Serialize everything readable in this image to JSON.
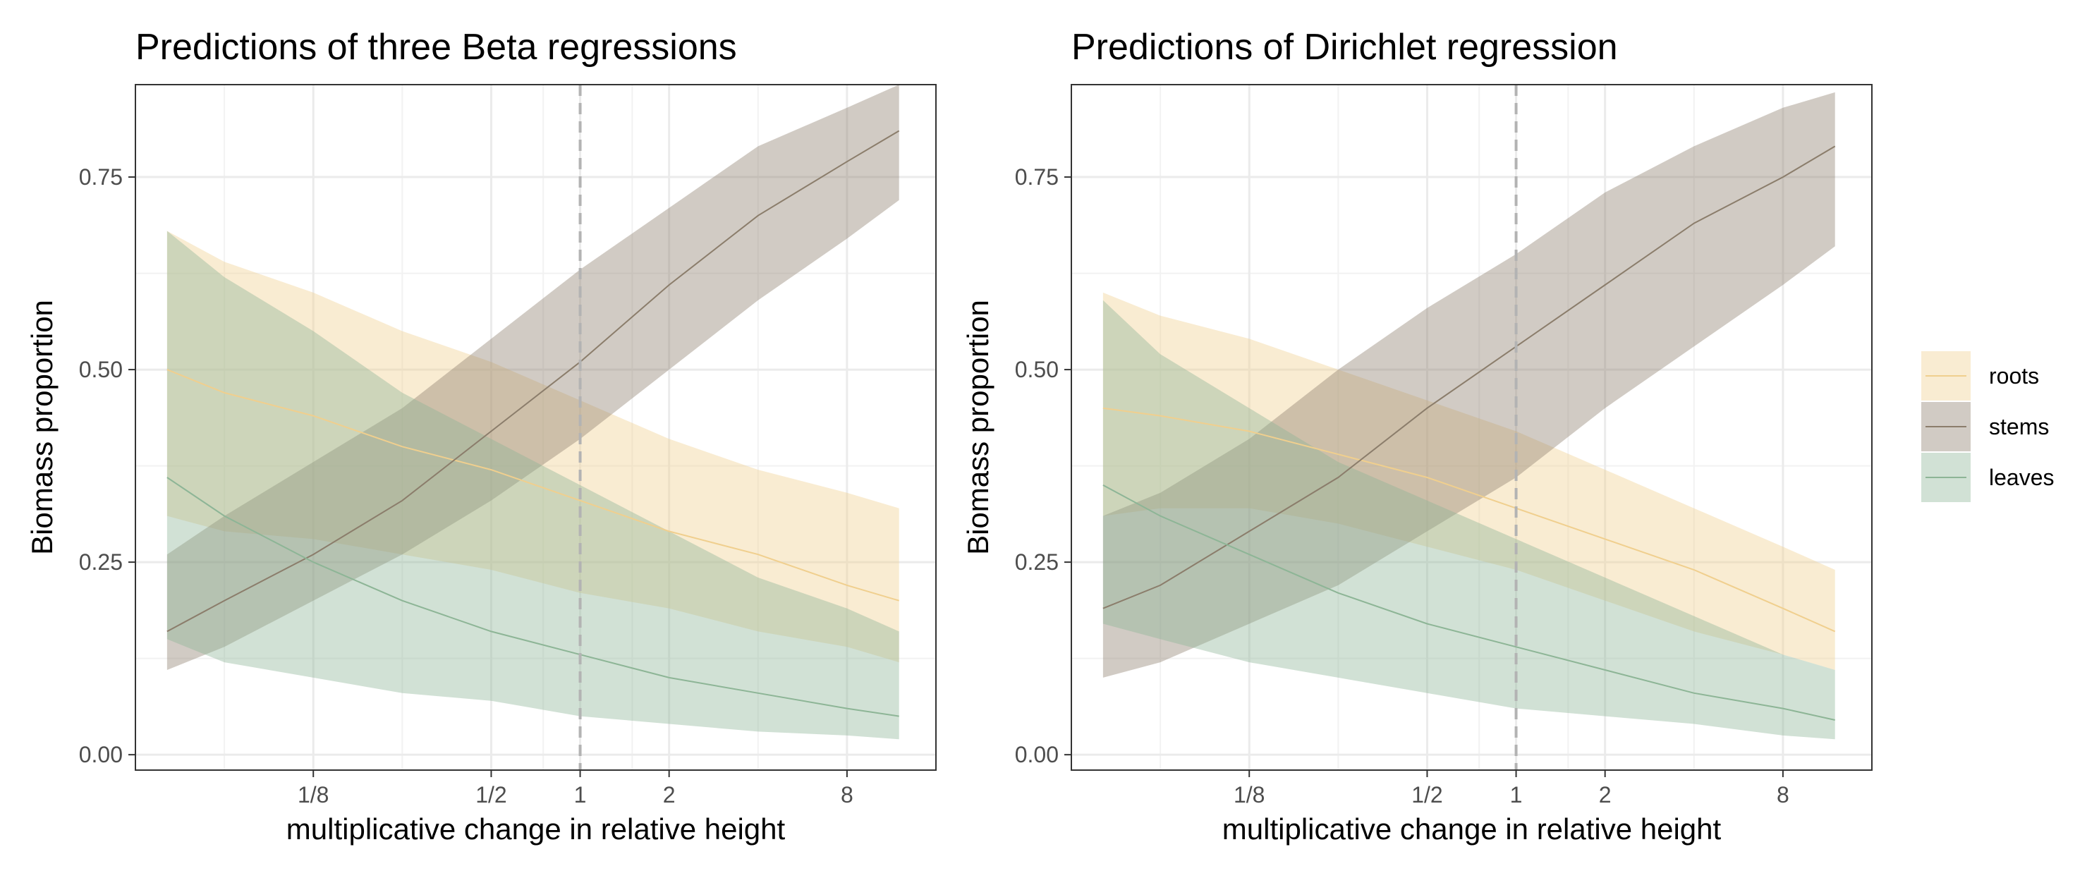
{
  "chart_data": [
    {
      "type": "line",
      "title": "Predictions of three Beta regressions",
      "xlabel": "multiplicative change in relative height",
      "ylabel": "Biomass proportion",
      "x_scale": "log2",
      "xlim": [
        0.03125,
        16
      ],
      "ylim": [
        -0.02,
        0.87
      ],
      "x_ticks": [
        0.125,
        0.5,
        1,
        2,
        8
      ],
      "x_tick_labels": [
        "1/8",
        "1/2",
        "1",
        "2",
        "8"
      ],
      "y_ticks": [
        0,
        0.25,
        0.5,
        0.75
      ],
      "y_tick_labels": [
        "0.00",
        "0.25",
        "0.50",
        "0.75"
      ],
      "reference_line": {
        "x": 1,
        "style": "dashed"
      },
      "grid": true,
      "x": [
        0.04,
        0.0625,
        0.125,
        0.25,
        0.5,
        1,
        2,
        4,
        8,
        12
      ],
      "series": [
        {
          "name": "roots",
          "color": "#F0CF8E",
          "values": [
            0.5,
            0.47,
            0.44,
            0.4,
            0.37,
            0.33,
            0.29,
            0.26,
            0.22,
            0.2
          ],
          "lower": [
            0.31,
            0.29,
            0.28,
            0.26,
            0.24,
            0.21,
            0.19,
            0.16,
            0.14,
            0.12
          ],
          "upper": [
            0.68,
            0.64,
            0.6,
            0.55,
            0.51,
            0.46,
            0.41,
            0.37,
            0.34,
            0.32
          ]
        },
        {
          "name": "stems",
          "color": "#8B7D6B",
          "values": [
            0.16,
            0.2,
            0.26,
            0.33,
            0.42,
            0.51,
            0.61,
            0.7,
            0.77,
            0.81
          ],
          "lower": [
            0.11,
            0.14,
            0.2,
            0.26,
            0.33,
            0.41,
            0.5,
            0.59,
            0.67,
            0.72
          ],
          "upper": [
            0.26,
            0.31,
            0.38,
            0.45,
            0.54,
            0.63,
            0.71,
            0.79,
            0.84,
            0.87
          ]
        },
        {
          "name": "leaves",
          "color": "#8DB596",
          "values": [
            0.36,
            0.31,
            0.25,
            0.2,
            0.16,
            0.13,
            0.1,
            0.08,
            0.06,
            0.05
          ],
          "lower": [
            0.15,
            0.12,
            0.1,
            0.08,
            0.07,
            0.05,
            0.04,
            0.03,
            0.025,
            0.02
          ],
          "upper": [
            0.68,
            0.62,
            0.55,
            0.47,
            0.41,
            0.35,
            0.29,
            0.23,
            0.19,
            0.16
          ]
        }
      ]
    },
    {
      "type": "line",
      "title": "Predictions of Dirichlet regression",
      "xlabel": "multiplicative change in relative height",
      "ylabel": "Biomass proportion",
      "x_scale": "log2",
      "xlim": [
        0.03125,
        16
      ],
      "ylim": [
        -0.02,
        0.87
      ],
      "x_ticks": [
        0.125,
        0.5,
        1,
        2,
        8
      ],
      "x_tick_labels": [
        "1/8",
        "1/2",
        "1",
        "2",
        "8"
      ],
      "y_ticks": [
        0,
        0.25,
        0.5,
        0.75
      ],
      "y_tick_labels": [
        "0.00",
        "0.25",
        "0.50",
        "0.75"
      ],
      "reference_line": {
        "x": 1,
        "style": "dashed"
      },
      "grid": true,
      "x": [
        0.04,
        0.0625,
        0.125,
        0.25,
        0.5,
        1,
        2,
        4,
        8,
        12
      ],
      "series": [
        {
          "name": "roots",
          "color": "#F0CF8E",
          "values": [
            0.45,
            0.44,
            0.42,
            0.39,
            0.36,
            0.32,
            0.28,
            0.24,
            0.19,
            0.16
          ],
          "lower": [
            0.31,
            0.32,
            0.32,
            0.3,
            0.27,
            0.24,
            0.2,
            0.16,
            0.13,
            0.11
          ],
          "upper": [
            0.6,
            0.57,
            0.54,
            0.5,
            0.46,
            0.42,
            0.37,
            0.32,
            0.27,
            0.24
          ]
        },
        {
          "name": "stems",
          "color": "#8B7D6B",
          "values": [
            0.19,
            0.22,
            0.29,
            0.36,
            0.45,
            0.53,
            0.61,
            0.69,
            0.75,
            0.79
          ],
          "lower": [
            0.1,
            0.12,
            0.17,
            0.22,
            0.29,
            0.36,
            0.45,
            0.53,
            0.61,
            0.66
          ],
          "upper": [
            0.31,
            0.34,
            0.41,
            0.5,
            0.58,
            0.65,
            0.73,
            0.79,
            0.84,
            0.86
          ]
        },
        {
          "name": "leaves",
          "color": "#8DB596",
          "values": [
            0.35,
            0.31,
            0.26,
            0.21,
            0.17,
            0.14,
            0.11,
            0.08,
            0.06,
            0.045
          ],
          "lower": [
            0.17,
            0.15,
            0.12,
            0.1,
            0.08,
            0.06,
            0.05,
            0.04,
            0.025,
            0.02
          ],
          "upper": [
            0.59,
            0.52,
            0.45,
            0.38,
            0.33,
            0.28,
            0.23,
            0.18,
            0.13,
            0.11
          ]
        }
      ]
    }
  ],
  "legend": {
    "placement": "right",
    "items": [
      {
        "label": "roots",
        "color": "#F0CF8E"
      },
      {
        "label": "stems",
        "color": "#8B7D6B"
      },
      {
        "label": "leaves",
        "color": "#8DB596"
      }
    ]
  }
}
